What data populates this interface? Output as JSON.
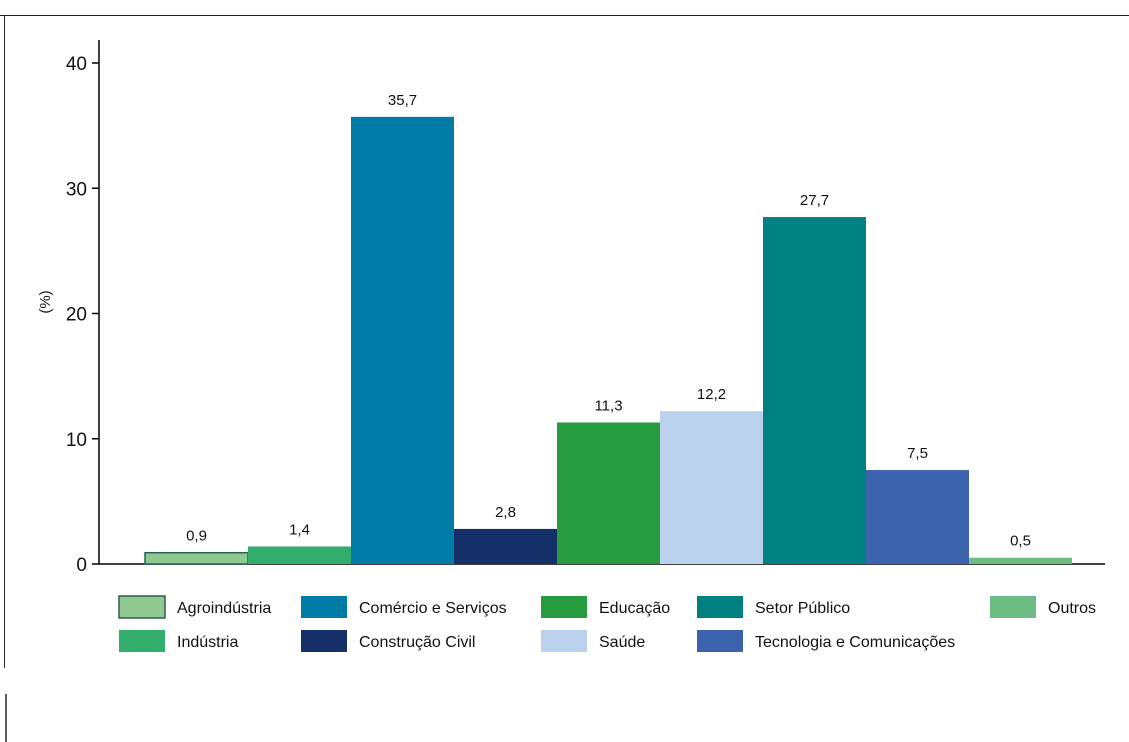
{
  "chart_data": {
    "type": "bar",
    "ylabel": "(%)",
    "ylim": [
      0,
      40
    ],
    "yticks": [
      0,
      10,
      20,
      30,
      40
    ],
    "grid": false,
    "legend_position": "bottom",
    "series": [
      {
        "name": "Agroindústria",
        "value": 0.9,
        "label": "0,9",
        "color": "#8fc98f"
      },
      {
        "name": "Indústria",
        "value": 1.4,
        "label": "1,4",
        "color": "#33ad6b"
      },
      {
        "name": "Comércio e Serviços",
        "value": 35.7,
        "label": "35,7",
        "color": "#007ca6"
      },
      {
        "name": "Construção Civil",
        "value": 2.8,
        "label": "2,8",
        "color": "#152f69"
      },
      {
        "name": "Educação",
        "value": 11.3,
        "label": "11,3",
        "color": "#279b3f"
      },
      {
        "name": "Saúde",
        "value": 12.2,
        "label": "12,2",
        "color": "#b9d1ec"
      },
      {
        "name": "Setor Público",
        "value": 27.7,
        "label": "27,7",
        "color": "#008080"
      },
      {
        "name": "Tecnologia e Comunicações",
        "value": 7.5,
        "label": "7,5",
        "color": "#3b62ac"
      },
      {
        "name": "Outros",
        "value": 0.5,
        "label": "0,5",
        "color": "#6cbd84"
      }
    ]
  }
}
